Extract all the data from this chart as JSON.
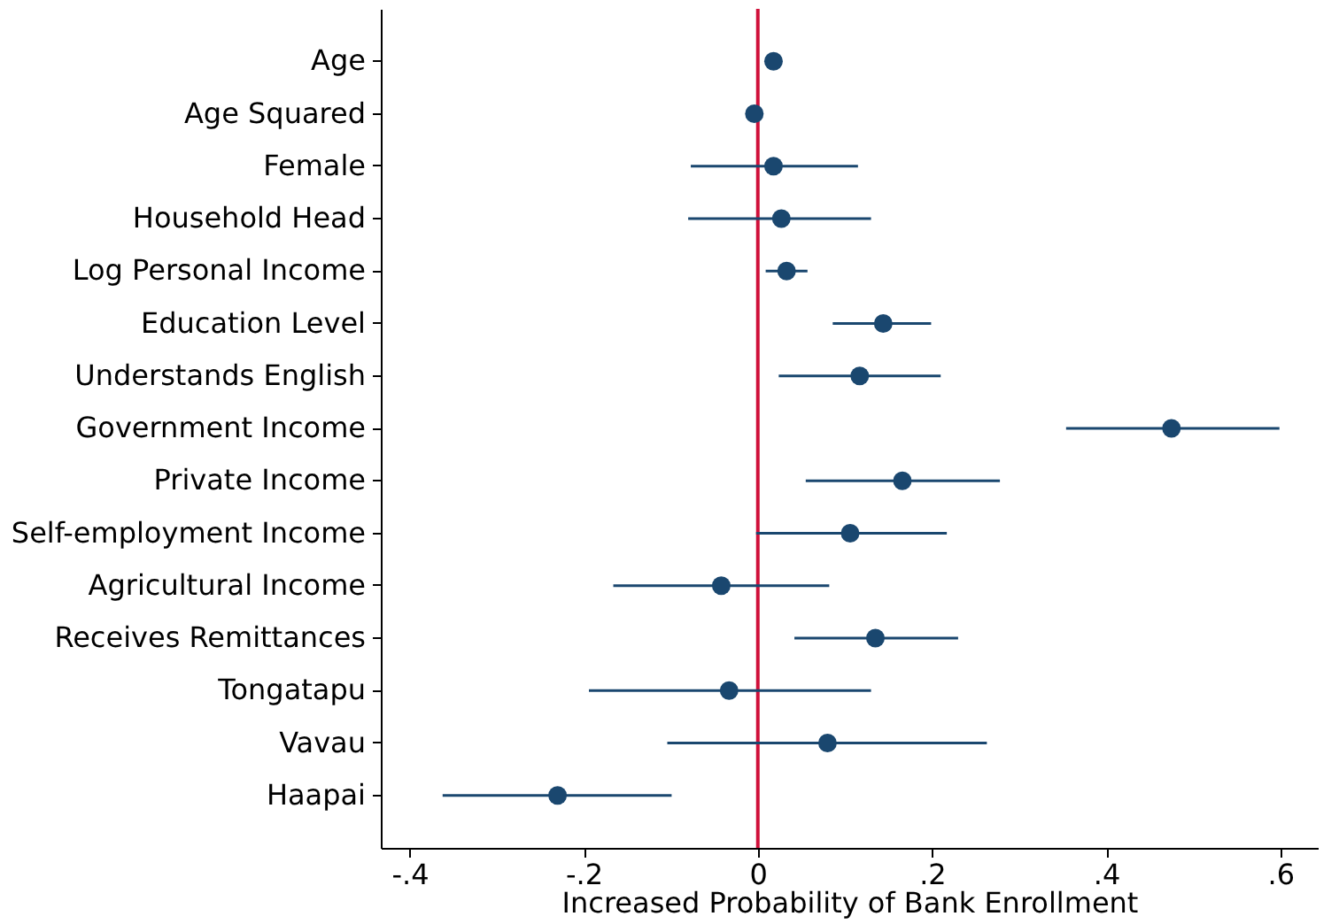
{
  "chart_data": {
    "type": "scatter",
    "orientation": "horizontal",
    "xlabel": "Increased Probability of Bank Enrollment",
    "categories": [
      "Age",
      "Age Squared",
      "Female",
      "Household Head",
      "Log Personal Income",
      "Education Level",
      "Understands English",
      "Government Income",
      "Private Income",
      "Self-employment Income",
      "Agricultural Income",
      "Receives Remittances",
      "Tongatapu",
      "Vavau",
      "Haapai"
    ],
    "series": [
      {
        "color": "#1a476f",
        "values": [
          0.018,
          -0.004,
          0.018,
          0.027,
          0.033,
          0.144,
          0.117,
          0.475,
          0.166,
          0.106,
          -0.042,
          0.135,
          -0.033,
          0.08,
          -0.23
        ],
        "errors": [
          [
            0.009,
            0.026
          ],
          null,
          [
            -0.077,
            0.115
          ],
          [
            -0.08,
            0.13
          ],
          [
            0.009,
            0.057
          ],
          [
            0.086,
            0.199
          ],
          [
            0.024,
            0.21
          ],
          [
            0.354,
            0.599
          ],
          [
            0.055,
            0.278
          ],
          [
            -0.002,
            0.217
          ],
          [
            -0.166,
            0.082
          ],
          [
            0.042,
            0.23
          ],
          [
            -0.194,
            0.13
          ],
          [
            -0.104,
            0.263
          ],
          [
            -0.362,
            -0.099
          ]
        ]
      }
    ],
    "xlim": [
      -0.433,
      0.643
    ],
    "xticks": [
      {
        "value": -0.4,
        "label": "-.4"
      },
      {
        "value": -0.2,
        "label": "-.2"
      },
      0,
      {
        "value": 0.2,
        "label": ".2"
      },
      {
        "value": 0.4,
        "label": ".4"
      },
      {
        "value": 0.6,
        "label": ".6"
      }
    ],
    "ref_lines": [
      {
        "axis": "x",
        "value": 0,
        "color": "#d0103a"
      }
    ],
    "marker": "circle",
    "grid": false
  }
}
